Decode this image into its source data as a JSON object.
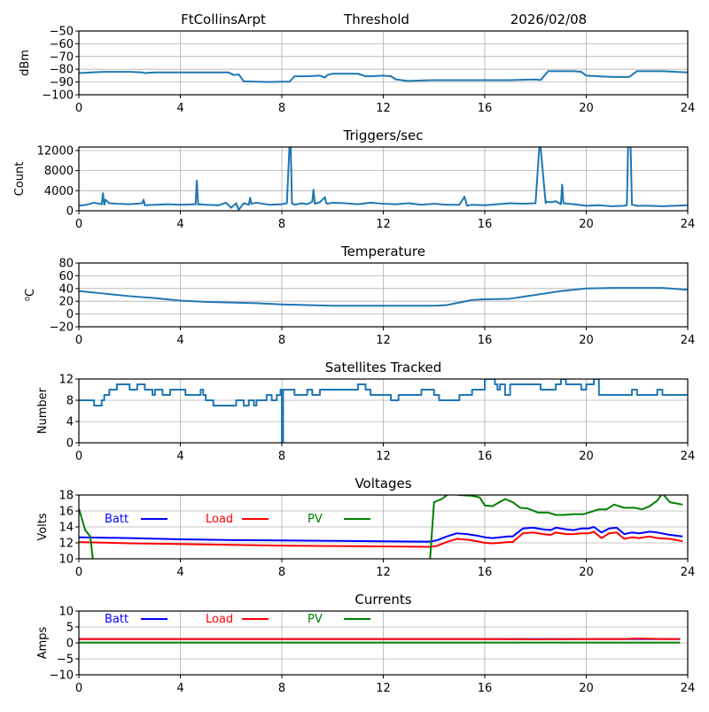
{
  "header": {
    "station": "FtCollinsArpt",
    "mode": "Threshold",
    "date": "2026/02/08"
  },
  "chart_data": [
    {
      "type": "line",
      "title": "",
      "xlabel": "",
      "ylabel": "dBm",
      "xlim": [
        0,
        24
      ],
      "ylim": [
        -100,
        -50
      ],
      "xticks": [
        0,
        4,
        8,
        12,
        16,
        20,
        24
      ],
      "yticks": [
        -100,
        -90,
        -80,
        -70,
        -60,
        -50
      ],
      "ytick_labels": [
        "−100",
        "−90",
        "−80",
        "−70",
        "−60",
        "−50"
      ],
      "grid": true,
      "series": [
        {
          "name": "Threshold",
          "color": "#1f77b4",
          "x": [
            0,
            0.5,
            1,
            2,
            2.5,
            2.6,
            3,
            4,
            5,
            5.9,
            6.1,
            6.3,
            6.5,
            7,
            7.5,
            8,
            8.3,
            8.5,
            9,
            9.5,
            9.7,
            9.8,
            10,
            10.5,
            11,
            11.3,
            11.5,
            12,
            12.3,
            12.5,
            13,
            13.5,
            14,
            15,
            16,
            17,
            18,
            18.2,
            18.5,
            19,
            19.5,
            19.8,
            20,
            20.5,
            21,
            21.5,
            21.7,
            22,
            23,
            24
          ],
          "y": [
            -83,
            -82.5,
            -82,
            -82,
            -82.5,
            -83,
            -82.5,
            -82.5,
            -82.5,
            -82.5,
            -84.5,
            -84,
            -89.5,
            -89.8,
            -90,
            -89.8,
            -89.8,
            -85.5,
            -85.5,
            -85,
            -86.5,
            -84.5,
            -83.5,
            -83.5,
            -83.5,
            -85.5,
            -85.5,
            -85,
            -85.5,
            -88,
            -89.2,
            -88.8,
            -88.5,
            -88.5,
            -88.5,
            -88.5,
            -88,
            -88.5,
            -81.5,
            -81.5,
            -81.5,
            -82,
            -85,
            -85.5,
            -86,
            -86,
            -86,
            -81.5,
            -81.5,
            -82.5
          ]
        }
      ]
    },
    {
      "type": "line",
      "title": "Triggers/sec",
      "xlabel": "",
      "ylabel": "Count",
      "xlim": [
        0,
        24
      ],
      "ylim": [
        0,
        12700
      ],
      "xticks": [
        0,
        4,
        8,
        12,
        16,
        20,
        24
      ],
      "yticks": [
        0,
        4000,
        8000,
        12000
      ],
      "ytick_labels": [
        "0",
        "4000",
        "8000",
        "12000"
      ],
      "grid": true,
      "series": [
        {
          "name": "Triggers",
          "color": "#1f77b4",
          "x": [
            0,
            0.3,
            0.6,
            0.9,
            0.95,
            1.0,
            1.05,
            1.2,
            1.5,
            2.0,
            2.5,
            2.55,
            2.6,
            3,
            3.5,
            4.0,
            4.6,
            4.65,
            4.7,
            4.75,
            5.0,
            5.5,
            5.8,
            6.0,
            6.2,
            6.3,
            6.5,
            6.7,
            6.75,
            6.8,
            7.0,
            7.5,
            8.0,
            8.2,
            8.3,
            8.35,
            8.4,
            8.5,
            8.8,
            9.0,
            9.2,
            9.25,
            9.3,
            9.5,
            9.7,
            9.75,
            9.8,
            10,
            10.5,
            11,
            11.5,
            12,
            12.5,
            13,
            13.5,
            14,
            14.5,
            15,
            15.2,
            15.3,
            15.5,
            16,
            16.5,
            17,
            17.5,
            18.0,
            18.15,
            18.2,
            18.4,
            18.45,
            18.6,
            18.8,
            19.0,
            19.05,
            19.1,
            19.3,
            19.5,
            20,
            20.5,
            21,
            21.5,
            21.6,
            21.65,
            21.75,
            21.8,
            22,
            22.5,
            23,
            23.5,
            24
          ],
          "y": [
            1000,
            1200,
            1600,
            1300,
            3500,
            1200,
            2200,
            1500,
            1400,
            1300,
            1500,
            2200,
            1100,
            1200,
            1300,
            1200,
            1300,
            6000,
            1200,
            1300,
            1200,
            1100,
            1600,
            600,
            1500,
            200,
            1500,
            1200,
            2600,
            1400,
            1600,
            1200,
            1300,
            1500,
            12700,
            12700,
            1500,
            1200,
            1500,
            1300,
            1800,
            4200,
            1400,
            1700,
            2700,
            1500,
            1400,
            1600,
            1500,
            1300,
            1600,
            1400,
            1300,
            1500,
            1200,
            1400,
            1200,
            1200,
            2800,
            1000,
            1200,
            1100,
            1300,
            1500,
            1400,
            1500,
            12700,
            12700,
            1500,
            1800,
            1700,
            1900,
            1300,
            5200,
            1500,
            1400,
            1300,
            1000,
            1100,
            900,
            1000,
            1100,
            12700,
            12700,
            1200,
            1000,
            1000,
            900,
            1000,
            1100
          ]
        }
      ]
    },
    {
      "type": "line",
      "title": "Temperature",
      "xlabel": "",
      "ylabel": "°C",
      "ylabel_display": "⁰C",
      "xlim": [
        0,
        24
      ],
      "ylim": [
        -20,
        80
      ],
      "xticks": [
        0,
        4,
        8,
        12,
        16,
        20,
        24
      ],
      "yticks": [
        -20,
        0,
        20,
        40,
        60,
        80
      ],
      "ytick_labels": [
        "−20",
        "0",
        "20",
        "40",
        "60",
        "80"
      ],
      "grid": true,
      "series": [
        {
          "name": "Temperature",
          "color": "#1f77b4",
          "x": [
            0,
            1,
            2,
            3,
            4,
            5,
            6,
            7,
            8,
            9,
            10,
            11,
            12,
            13,
            14,
            14.5,
            15,
            15.5,
            16,
            17,
            18,
            19,
            20,
            21,
            22,
            23,
            24
          ],
          "y": [
            36,
            32,
            28,
            25,
            21,
            19,
            18,
            17,
            15,
            14,
            13,
            13,
            13,
            13,
            13,
            14,
            18,
            22,
            23,
            24,
            30,
            36,
            40,
            41,
            41,
            41,
            38
          ]
        }
      ]
    },
    {
      "type": "line",
      "title": "Satellites Tracked",
      "xlabel": "",
      "ylabel": "Number",
      "xlim": [
        0,
        24
      ],
      "ylim": [
        0,
        12
      ],
      "xticks": [
        0,
        4,
        8,
        12,
        16,
        20,
        24
      ],
      "yticks": [
        0,
        4,
        8,
        12
      ],
      "ytick_labels": [
        "0",
        "4",
        "8",
        "12"
      ],
      "grid": true,
      "step": true,
      "series": [
        {
          "name": "Satellites",
          "color": "#1f77b4",
          "x": [
            0,
            0.6,
            0.9,
            1.0,
            1.2,
            1.5,
            2.0,
            2.3,
            2.6,
            2.9,
            3.0,
            3.3,
            3.6,
            3.8,
            4.0,
            4.2,
            4.5,
            4.8,
            4.9,
            5.0,
            5.1,
            5.3,
            6.0,
            6.2,
            6.5,
            6.7,
            6.9,
            7.0,
            7.4,
            7.6,
            7.8,
            7.95,
            8.0,
            8.05,
            8.3,
            8.5,
            8.8,
            9.0,
            9.2,
            9.5,
            9.8,
            10.5,
            11.0,
            11.3,
            11.5,
            12,
            12.3,
            12.6,
            13.0,
            13.5,
            13.8,
            14.0,
            14.2,
            14.7,
            15.0,
            15.5,
            15.8,
            16.0,
            16.4,
            16.5,
            16.6,
            16.8,
            17.0,
            17.5,
            18.2,
            18.5,
            18.8,
            19.0,
            19.2,
            19.5,
            19.8,
            20.0,
            20.3,
            20.5,
            21.0,
            21.5,
            21.8,
            22.0,
            22.5,
            22.8,
            23.0,
            23.3,
            23.6,
            24
          ],
          "y": [
            8,
            7,
            8,
            9,
            10,
            11,
            10,
            11,
            10,
            9,
            10,
            9,
            10,
            10,
            10,
            9,
            9,
            10,
            9,
            8,
            8,
            7,
            7,
            8,
            7,
            8,
            7,
            8,
            9,
            8,
            9,
            10,
            0,
            10,
            10,
            9,
            9,
            10,
            9,
            10,
            10,
            10,
            11,
            10,
            9,
            9,
            8,
            9,
            9,
            10,
            10,
            9,
            8,
            8,
            9,
            10,
            10,
            12,
            11,
            10,
            11,
            9,
            11,
            11,
            10,
            10,
            11,
            12,
            11,
            11,
            10,
            11,
            12,
            9,
            9,
            9,
            10,
            9,
            9,
            10,
            9,
            9,
            9,
            9
          ]
        }
      ]
    },
    {
      "type": "line",
      "title": "Voltages",
      "xlabel": "",
      "ylabel": "Volts",
      "xlim": [
        0,
        24
      ],
      "ylim": [
        10,
        18
      ],
      "xticks": [
        0,
        4,
        8,
        12,
        16,
        20,
        24
      ],
      "yticks": [
        10,
        12,
        14,
        16,
        18
      ],
      "ytick_labels": [
        "10",
        "12",
        "14",
        "16",
        "18"
      ],
      "grid": true,
      "legend": "inside-top",
      "series": [
        {
          "name": "Batt",
          "color": "#0000ff",
          "x": [
            0,
            2,
            4,
            6,
            8,
            10,
            12,
            13.8,
            14.1,
            14.5,
            14.9,
            15.3,
            15.7,
            16,
            16.3,
            16.6,
            16.9,
            17.1,
            17.5,
            17.9,
            18.3,
            18.6,
            18.8,
            19.2,
            19.5,
            19.8,
            20.1,
            20.3,
            20.6,
            20.9,
            21.2,
            21.5,
            21.8,
            22.1,
            22.5,
            22.8,
            23.3,
            23.8
          ],
          "y": [
            12.7,
            12.6,
            12.45,
            12.35,
            12.3,
            12.25,
            12.2,
            12.15,
            12.3,
            12.8,
            13.2,
            13.1,
            12.9,
            12.7,
            12.6,
            12.7,
            12.8,
            12.8,
            13.8,
            13.9,
            13.7,
            13.6,
            13.9,
            13.7,
            13.6,
            13.8,
            13.8,
            14.0,
            13.3,
            13.8,
            13.9,
            13.1,
            13.3,
            13.2,
            13.4,
            13.3,
            13.0,
            12.8
          ]
        },
        {
          "name": "Load",
          "color": "#ff0000",
          "x": [
            0,
            2,
            4,
            6,
            8,
            10,
            12,
            13.8,
            14.1,
            14.5,
            14.9,
            15.3,
            15.7,
            16,
            16.3,
            16.6,
            16.9,
            17.1,
            17.5,
            17.9,
            18.3,
            18.6,
            18.8,
            19.2,
            19.5,
            19.8,
            20.1,
            20.3,
            20.6,
            20.9,
            21.2,
            21.5,
            21.8,
            22.1,
            22.5,
            22.8,
            23.3,
            23.8
          ],
          "y": [
            12.1,
            11.95,
            11.85,
            11.75,
            11.65,
            11.6,
            11.55,
            11.5,
            11.6,
            12.1,
            12.5,
            12.4,
            12.2,
            12.0,
            11.95,
            12.0,
            12.1,
            12.1,
            13.2,
            13.3,
            13.1,
            13.0,
            13.3,
            13.1,
            13.1,
            13.2,
            13.2,
            13.4,
            12.6,
            13.2,
            13.3,
            12.5,
            12.7,
            12.6,
            12.8,
            12.6,
            12.5,
            12.2
          ]
        },
        {
          "name": "PV",
          "color": "#008000",
          "x": [
            0,
            0.25,
            0.45,
            0.55,
            0.6,
            13.8,
            14.0,
            14.3,
            14.6,
            15.0,
            15.5,
            15.8,
            16.0,
            16.3,
            16.8,
            17.1,
            17.4,
            17.7,
            18.1,
            18.5,
            18.8,
            19.1,
            19.5,
            19.9,
            20.2,
            20.5,
            20.8,
            21.1,
            21.5,
            21.9,
            22.2,
            22.5,
            22.8,
            23.0,
            23.3,
            23.8
          ],
          "y": [
            16.3,
            13.6,
            12.8,
            10.0,
            8.0,
            8.0,
            17.1,
            17.5,
            18.2,
            18.0,
            17.9,
            17.7,
            16.7,
            16.6,
            17.5,
            17.1,
            16.4,
            16.3,
            15.8,
            15.8,
            15.5,
            15.5,
            15.6,
            15.6,
            15.9,
            16.2,
            16.2,
            16.8,
            16.4,
            16.4,
            16.2,
            16.6,
            17.3,
            18.2,
            17.1,
            16.8
          ]
        }
      ]
    },
    {
      "type": "line",
      "title": "Currents",
      "xlabel": "",
      "ylabel": "Amps",
      "xlim": [
        0,
        24
      ],
      "ylim": [
        -10,
        10
      ],
      "xticks": [
        0,
        4,
        8,
        12,
        16,
        20,
        24
      ],
      "yticks": [
        -10,
        -5,
        0,
        5,
        10
      ],
      "ytick_labels": [
        "−10",
        "−5",
        "0",
        "5",
        "10"
      ],
      "grid": true,
      "legend": "inside-top",
      "series": [
        {
          "name": "Batt",
          "color": "#0000ff",
          "x": [
            0,
            23.7
          ],
          "y": [
            1.2,
            1.2
          ]
        },
        {
          "name": "Load",
          "color": "#ff0000",
          "x": [
            0,
            4,
            8,
            12,
            16,
            18,
            20,
            21.5,
            22,
            23,
            23.7
          ],
          "y": [
            1.2,
            1.2,
            1.2,
            1.2,
            1.2,
            1.1,
            1.2,
            1.2,
            1.4,
            1.2,
            1.2
          ]
        },
        {
          "name": "PV",
          "color": "#008000",
          "x": [
            0,
            23.7
          ],
          "y": [
            0.1,
            0.1
          ]
        }
      ]
    }
  ]
}
